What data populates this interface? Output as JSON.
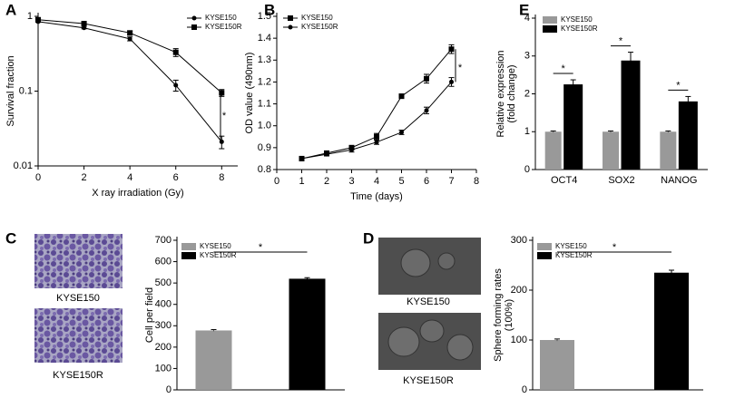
{
  "chart_data": [
    {
      "type": "line",
      "panel": "A",
      "xlabel": "X ray irradiation (Gy)",
      "ylabel": [
        "Survival fraction"
      ],
      "x": [
        0,
        2,
        4,
        6,
        8
      ],
      "xlim": [
        0,
        8.7
      ],
      "xticks": [
        0,
        2,
        4,
        6,
        8
      ],
      "ylim": [
        0.01,
        1
      ],
      "yticks": [
        0.01,
        0.1,
        1
      ],
      "log_y": true,
      "legend": "upper right",
      "series": [
        {
          "name": "KYSE150",
          "color": "#000000",
          "marker": "circle",
          "values": [
            0.85,
            0.7,
            0.5,
            0.12,
            0.021
          ],
          "errors": [
            0.02,
            0.02,
            0.03,
            0.02,
            0.004
          ]
        },
        {
          "name": "KYSE150R",
          "color": "#000000",
          "marker": "square",
          "values": [
            0.9,
            0.8,
            0.6,
            0.33,
            0.095
          ],
          "errors": [
            0.02,
            0.03,
            0.04,
            0.04,
            0.01
          ]
        }
      ],
      "annotations": [
        "*"
      ]
    },
    {
      "type": "line",
      "panel": "B",
      "xlabel": "Time (days)",
      "ylabel": [
        "OD value (490nm)"
      ],
      "x": [
        1,
        2,
        3,
        4,
        5,
        6,
        7
      ],
      "xlim": [
        0,
        8
      ],
      "xticks": [
        0,
        1,
        2,
        3,
        4,
        5,
        6,
        7,
        8
      ],
      "ylim": [
        0.8,
        1.5
      ],
      "yticks": [
        0.8,
        0.9,
        {
          "value": 1.0,
          "label": "1.0"
        },
        1.1,
        1.2,
        1.3,
        1.4,
        1.5
      ],
      "legend": "upper left",
      "series": [
        {
          "name": "KYSE150",
          "color": "#000000",
          "marker": "square",
          "values": [
            0.85,
            0.875,
            0.9,
            0.95,
            1.135,
            1.215,
            1.35
          ],
          "errors": [
            0.005,
            0.008,
            0.01,
            0.015,
            0.01,
            0.02,
            0.02
          ]
        },
        {
          "name": "KYSE150R",
          "color": "#000000",
          "marker": "circle",
          "values": [
            0.85,
            0.87,
            0.89,
            0.925,
            0.97,
            1.07,
            1.2
          ],
          "errors": [
            0.005,
            0.008,
            0.01,
            0.01,
            0.01,
            0.015,
            0.02
          ]
        }
      ],
      "annotations": [
        "*"
      ]
    },
    {
      "type": "bar",
      "panel": "E",
      "ylabel": [
        "Relative expression",
        "(fold change)"
      ],
      "categories": [
        "OCT4",
        "SOX2",
        "NANOG"
      ],
      "ylim": [
        0,
        4
      ],
      "yticks": [
        0,
        1,
        2,
        3,
        4
      ],
      "legend": "upper left",
      "series": [
        {
          "name": "KYSE150",
          "color": "#999999",
          "values": [
            1,
            1,
            1
          ],
          "errors": [
            0.02,
            0.02,
            0.02
          ]
        },
        {
          "name": "KYSE150R",
          "color": "#000000",
          "values": [
            2.25,
            2.88,
            1.8
          ],
          "errors": [
            0.12,
            0.22,
            0.13
          ]
        }
      ],
      "annotations": [
        "*",
        "*",
        "*"
      ]
    },
    {
      "type": "bar",
      "panel": "C",
      "ylabel": [
        "Cell per field"
      ],
      "image_labels": [
        "KYSE150",
        "KYSE150R"
      ],
      "categories": [
        null
      ],
      "ylim": [
        0,
        700
      ],
      "yticks": [
        0,
        100,
        200,
        300,
        400,
        500,
        600,
        700
      ],
      "legend": "upper left",
      "series": [
        {
          "name": "KYSE150",
          "color": "#999999",
          "values": [
            278
          ],
          "errors": [
            4
          ]
        },
        {
          "name": "KYSE150R",
          "color": "#000000",
          "values": [
            520
          ],
          "errors": [
            5
          ]
        }
      ],
      "annotations": [
        "*"
      ]
    },
    {
      "type": "bar",
      "panel": "D",
      "ylabel": [
        "Sphere forming rates",
        "(100%)"
      ],
      "image_labels": [
        "KYSE150",
        "KYSE150R"
      ],
      "categories": [
        null
      ],
      "ylim": [
        0,
        300
      ],
      "yticks": [
        0,
        100,
        200,
        300
      ],
      "legend": "upper left",
      "series": [
        {
          "name": "KYSE150",
          "color": "#999999",
          "values": [
            100
          ],
          "errors": [
            2
          ]
        },
        {
          "name": "KYSE150R",
          "color": "#000000",
          "values": [
            235
          ],
          "errors": [
            5
          ]
        }
      ],
      "annotations": [
        "*"
      ]
    }
  ]
}
